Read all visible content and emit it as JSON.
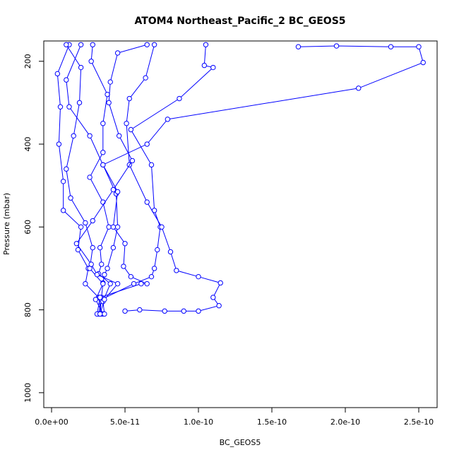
{
  "chart_data": {
    "type": "line",
    "title": "ATOM4 Northeast_Pacific_2 BC_GEOS5",
    "x_label": "BC_GEOS5",
    "y_label": "Pressure (mbar)",
    "xlim": [
      -5.3e-12,
      2.625e-10
    ],
    "ylim": [
      1036,
      151
    ],
    "xticks": [
      {
        "value": 0,
        "label": "0.0e+00"
      },
      {
        "value": 5e-11,
        "label": "5.0e-11"
      },
      {
        "value": 1e-10,
        "label": "1.0e-10"
      },
      {
        "value": 1.5e-10,
        "label": "1.5e-10"
      },
      {
        "value": 2e-10,
        "label": "2.0e-10"
      },
      {
        "value": 2.5e-10,
        "label": "2.5e-10"
      }
    ],
    "yticks": [
      200,
      400,
      600,
      800,
      1000
    ],
    "series": [
      {
        "color": "#0000ff",
        "x": [
          3.3e-11,
          3.4e-11,
          3.5e-11,
          3.6e-11,
          3.8e-11,
          4.2e-11,
          4.5e-11,
          4.4e-11,
          3.5e-11,
          6.5e-11,
          7.9e-11,
          2.09e-10,
          2.53e-10,
          2.5e-10,
          2.31e-10,
          1.94e-10,
          1.68e-10
        ],
        "values": [
          810,
          770,
          735,
          715,
          700,
          650,
          600,
          520,
          450,
          400,
          340,
          265,
          203,
          165,
          165,
          163,
          165
        ]
      },
      {
        "color": "#0000ff",
        "x": [
          3.2e-11,
          3.4e-11,
          5.6e-11,
          6.8e-11,
          7e-11,
          7.2e-11,
          7.4e-11,
          7e-11,
          6.8e-11,
          5.4e-11,
          8.7e-11,
          1.1e-10,
          1.04e-10,
          1.05e-10
        ],
        "values": [
          810,
          775,
          737,
          720,
          700,
          655,
          600,
          560,
          450,
          365,
          290,
          215,
          210,
          160
        ]
      },
      {
        "color": "#0000ff",
        "x": [
          5e-11,
          6e-11,
          7.7e-11,
          9e-11,
          1e-10,
          1.14e-10,
          1.1e-10,
          1.15e-10,
          1e-10,
          8.5e-11,
          8.1e-11,
          7.5e-11,
          6.5e-11,
          5.3e-11,
          5.1e-11,
          5.3e-11,
          6.4e-11,
          7e-11
        ],
        "values": [
          803,
          800,
          803,
          803,
          803,
          790,
          770,
          735,
          720,
          705,
          660,
          600,
          540,
          450,
          350,
          290,
          240,
          160
        ]
      },
      {
        "color": "#0000ff",
        "x": [
          3.4e-11,
          3.2e-11,
          2.3e-11,
          2.5e-11,
          1.8e-11,
          2e-11,
          8e-12,
          8e-12,
          5e-12,
          6e-12,
          4e-12,
          1.2e-11
        ],
        "values": [
          810,
          770,
          737,
          700,
          655,
          600,
          560,
          490,
          400,
          310,
          230,
          160
        ]
      },
      {
        "color": "#0000ff",
        "x": [
          3.5e-11,
          3e-11,
          3.5e-11,
          2.6e-11,
          2.8e-11,
          2.3e-11,
          1.3e-11,
          1e-11,
          1.5e-11,
          1.9e-11,
          2e-11,
          1e-11
        ],
        "values": [
          810,
          775,
          737,
          700,
          650,
          590,
          530,
          460,
          380,
          300,
          215,
          160
        ]
      },
      {
        "color": "#0000ff",
        "x": [
          3.6e-11,
          3.5e-11,
          4e-11,
          3.2e-11,
          3.4e-11,
          3.3e-11,
          3.9e-11,
          3.5e-11,
          2.6e-11,
          3.5e-11,
          3.5e-11,
          3.8e-11,
          2.7e-11,
          2.8e-11
        ],
        "values": [
          810,
          780,
          737,
          713,
          690,
          650,
          600,
          540,
          480,
          420,
          350,
          280,
          200,
          160
        ]
      },
      {
        "color": "#0000ff",
        "x": [
          3.1e-11,
          3.3e-11,
          6.1e-11,
          6.5e-11,
          5.4e-11,
          4.9e-11,
          5e-11,
          4.2e-11,
          4.5e-11,
          3.5e-11,
          2.6e-11,
          1.2e-11,
          1e-11,
          2e-11
        ],
        "values": [
          810,
          770,
          737,
          737,
          720,
          695,
          640,
          600,
          515,
          450,
          380,
          310,
          245,
          160
        ]
      },
      {
        "color": "#0000ff",
        "x": [
          3.3e-11,
          3.6e-11,
          4.5e-11,
          3.1e-11,
          2.7e-11,
          1.7e-11,
          2.8e-11,
          4.2e-11,
          5.5e-11,
          4.6e-11,
          3.9e-11,
          4e-11,
          4.5e-11,
          6.5e-11
        ],
        "values": [
          810,
          775,
          737,
          715,
          690,
          640,
          585,
          510,
          440,
          380,
          300,
          250,
          180,
          160
        ]
      }
    ]
  }
}
